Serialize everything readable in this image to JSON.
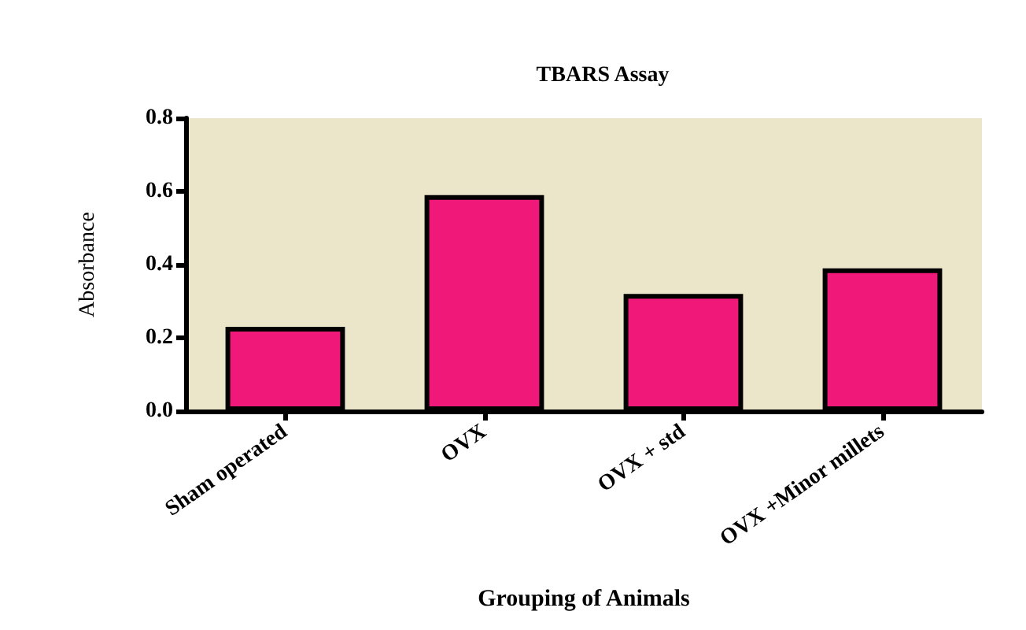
{
  "chart_data": {
    "type": "bar",
    "title": "TBARS Assay",
    "xlabel": "Grouping of Animals",
    "ylabel": "Absorbance",
    "categories": [
      "Sham operated",
      "OVX",
      "OVX + std",
      "OVX +Minor millets"
    ],
    "values": [
      0.23,
      0.59,
      0.32,
      0.39
    ],
    "color": "#f0197a",
    "ylim": [
      0,
      0.8
    ],
    "yticks": [
      "0.0",
      0.2,
      0.4,
      0.6,
      0.8
    ],
    "grid": false
  }
}
